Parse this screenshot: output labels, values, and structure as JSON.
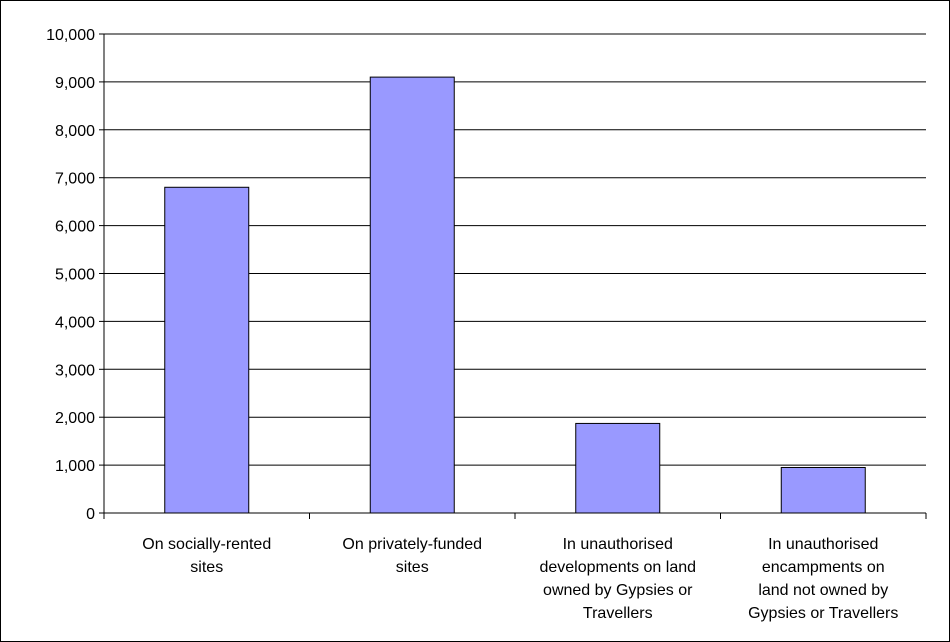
{
  "chart_data": {
    "type": "bar",
    "categories": [
      [
        "On socially-rented",
        "sites"
      ],
      [
        "On privately-funded",
        "sites"
      ],
      [
        "In unauthorised",
        "developments on land",
        "owned by Gypsies or",
        "Travellers"
      ],
      [
        "In unauthorised",
        "encampments on",
        "land not owned by",
        "Gypsies or Travellers"
      ]
    ],
    "values": [
      6800,
      9100,
      1870,
      950
    ],
    "ylim": [
      0,
      10000
    ],
    "yticks": [
      "0",
      "1,000",
      "2,000",
      "3,000",
      "4,000",
      "5,000",
      "6,000",
      "7,000",
      "8,000",
      "9,000",
      "10,000"
    ],
    "title": "",
    "xlabel": "",
    "ylabel": "",
    "grid": true,
    "legend": "none",
    "bar_color": "#9999ff",
    "bar_edge_color": "#000000",
    "grid_color": "#000000"
  }
}
